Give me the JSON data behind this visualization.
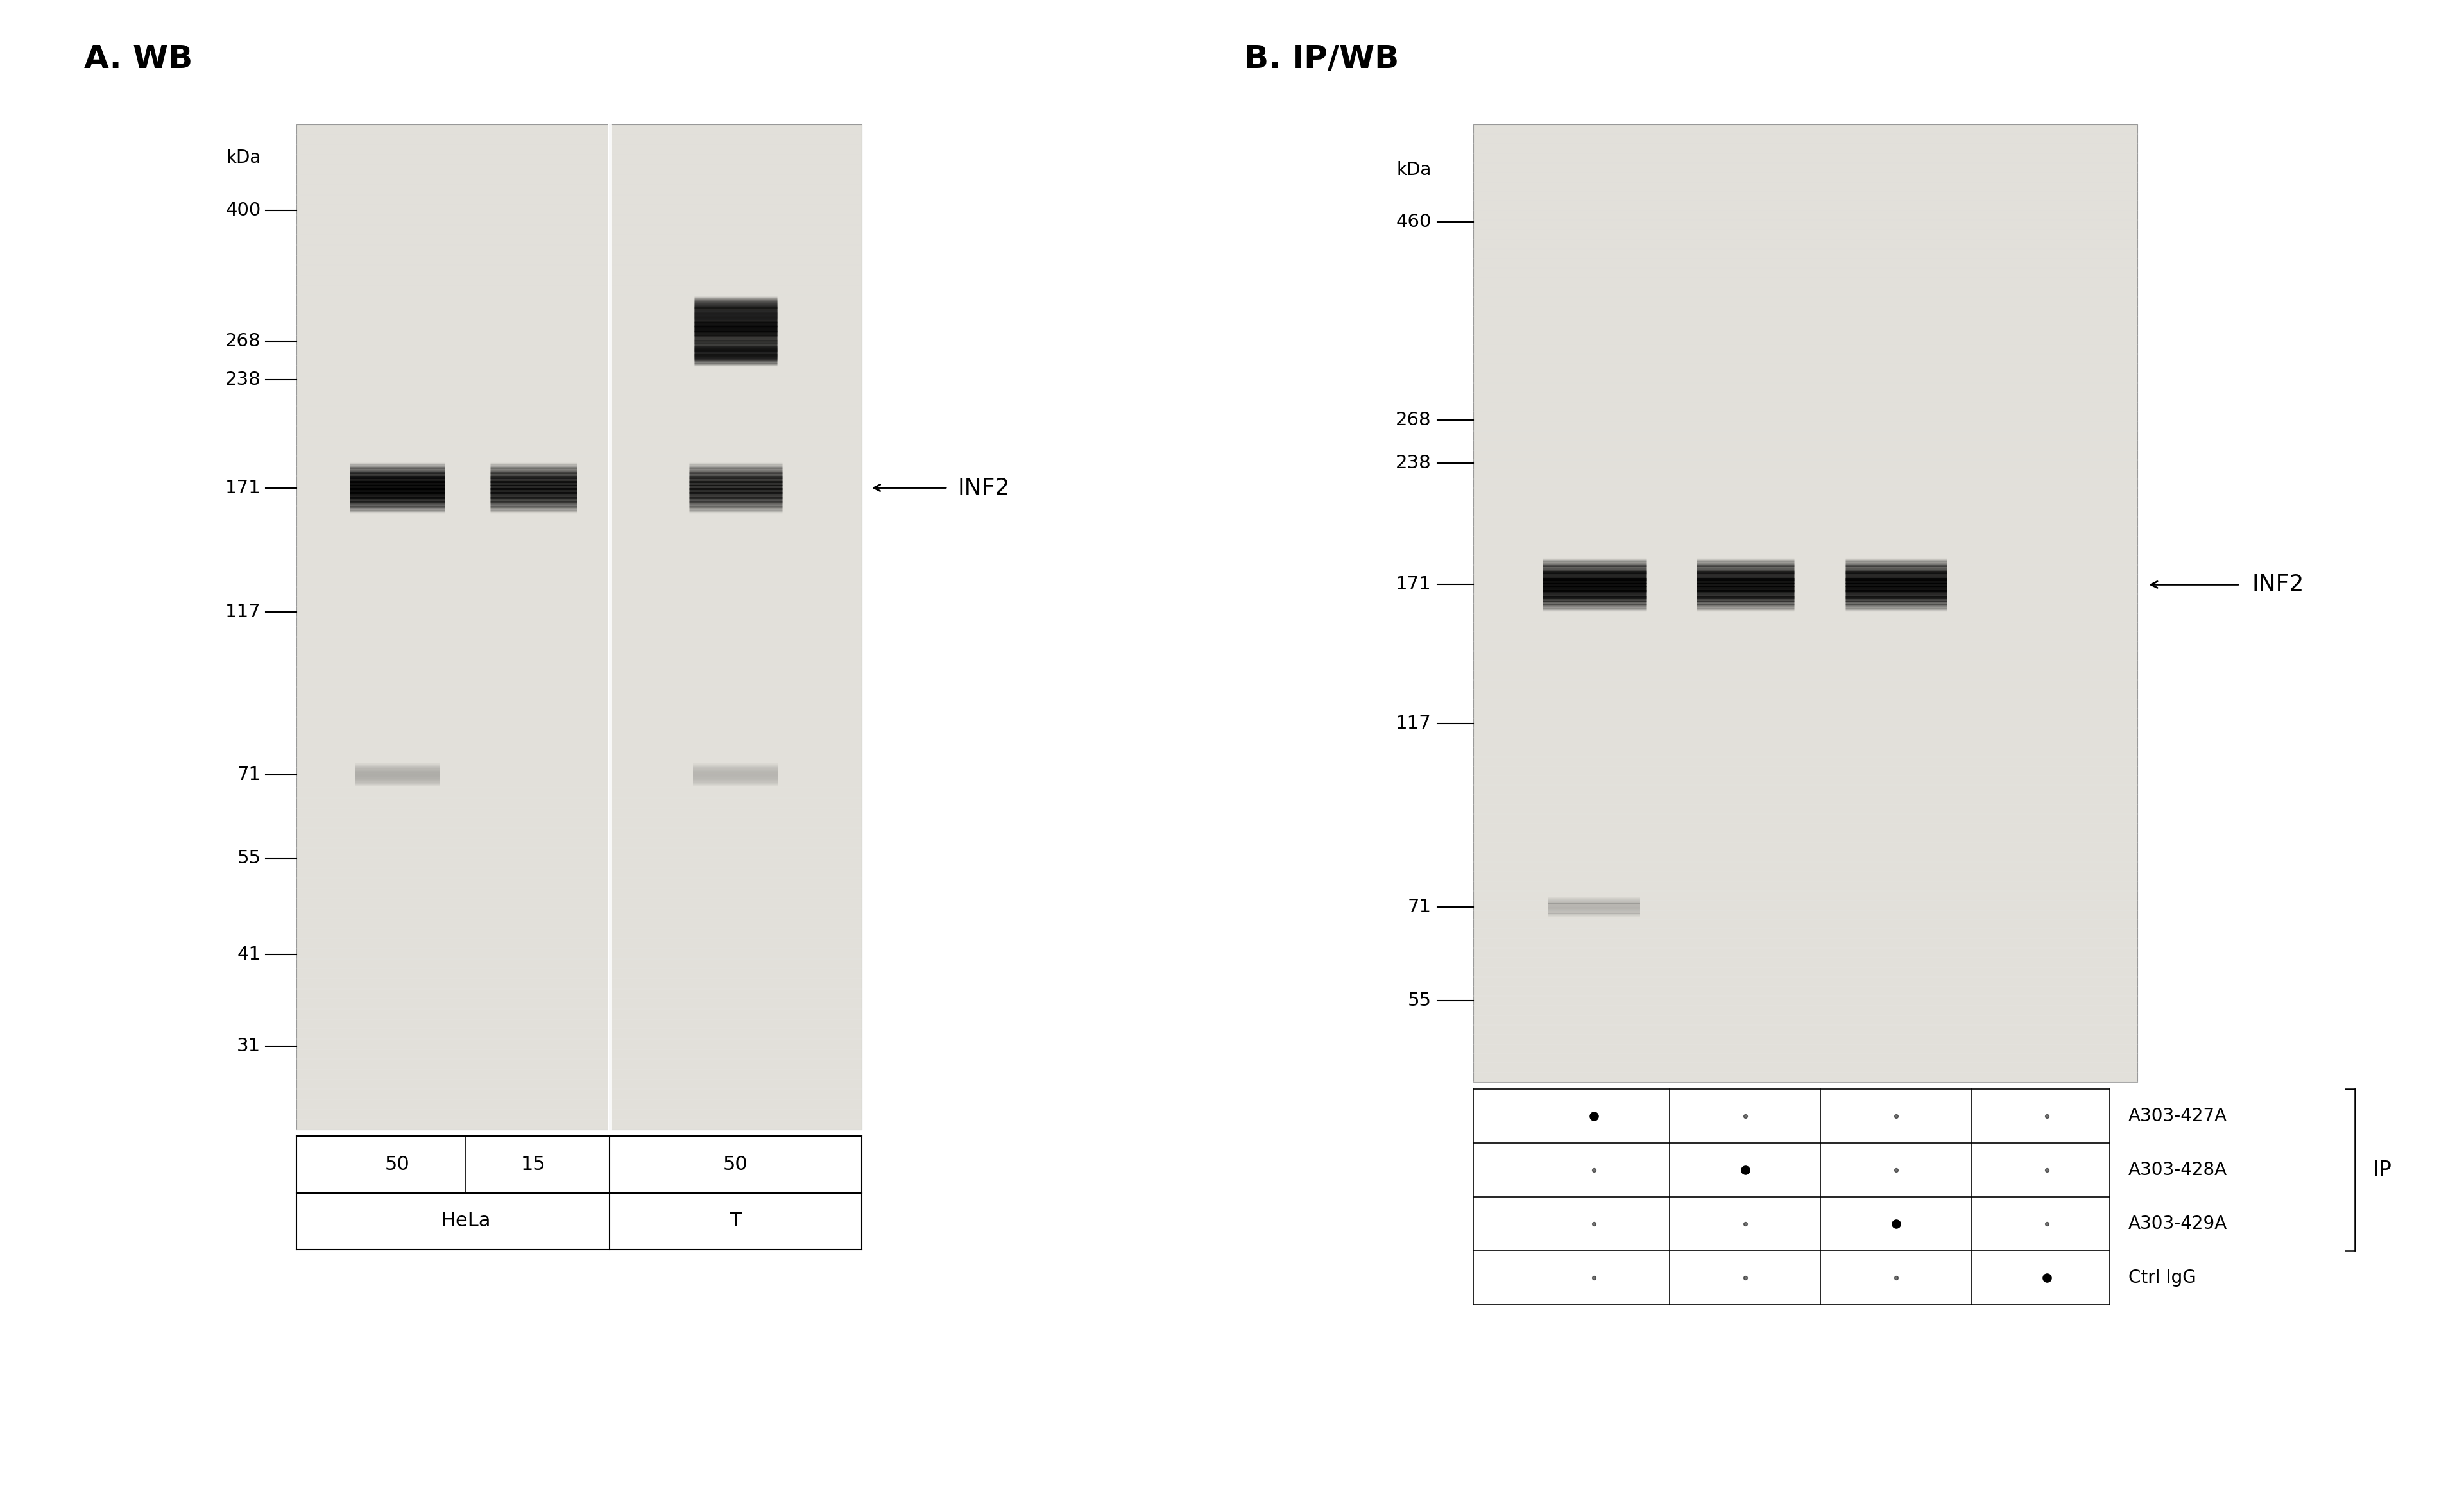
{
  "panel_A_title": "A. WB",
  "panel_B_title": "B. IP/WB",
  "gel_bg": "#e8e6e0",
  "white_bg": "#ffffff",
  "mw_markers_A": [
    400,
    268,
    238,
    171,
    117,
    71,
    55,
    41,
    31
  ],
  "mw_markers_B": [
    460,
    268,
    238,
    171,
    117,
    71,
    55
  ],
  "inf2_label": "INF2",
  "panel_A_samples": [
    "50",
    "15",
    "50"
  ],
  "panel_A_cell_lines": [
    "HeLa",
    "T"
  ],
  "ip_antibodies": [
    "A303-427A",
    "A303-428A",
    "A303-429A",
    "Ctrl IgG"
  ],
  "ip_label": "IP",
  "gel_color": "#dcdad4",
  "band_color": "#111111",
  "text_color": "#222222"
}
